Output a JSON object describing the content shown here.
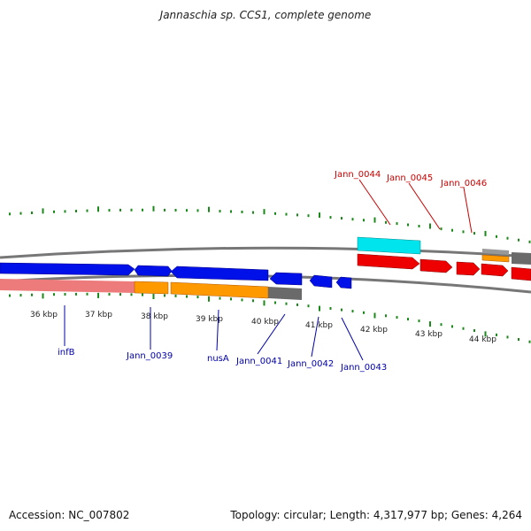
{
  "title": "Jannaschia sp. CCS1, complete genome",
  "footer": {
    "accession": "Accession: NC_007802",
    "summary": "Topology: circular; Length: 4,317,977 bp; Genes: 4,264"
  },
  "colors": {
    "cds_forward": "#0000ee",
    "cds_reverse": "#ee0000",
    "orange": "#ff9900",
    "pink": "#ee7b7b",
    "cyan": "#00e0e8",
    "gray": "#666666",
    "tick": "#1a8a1a",
    "label_blue": "#0000aa",
    "label_red": "#cc0000"
  },
  "scale_labels": [
    "36 kbp",
    "37 kbp",
    "38 kbp",
    "39 kbp",
    "40 kbp",
    "41 kbp",
    "42 kbp",
    "43 kbp",
    "44 kbp"
  ],
  "gene_labels_top": [
    "Jann_0044",
    "Jann_0045",
    "Jann_0046"
  ],
  "gene_labels_bottom": [
    "infB",
    "Jann_0039",
    "nusA",
    "Jann_0041",
    "Jann_0042",
    "Jann_0043"
  ]
}
